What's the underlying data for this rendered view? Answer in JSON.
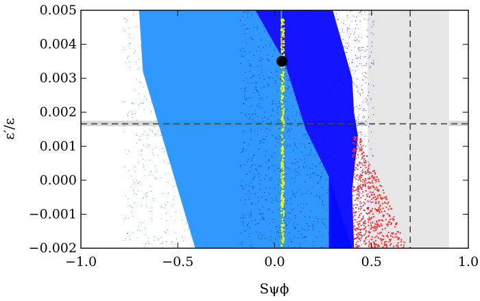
{
  "chart_data": {
    "type": "scatter",
    "xlabel": "Sψϕ",
    "ylabel": "ε′/ε",
    "xlim": [
      -1.0,
      1.0
    ],
    "ylim": [
      -0.002,
      0.005
    ],
    "xticks": [
      "−1.0",
      "−0.5",
      "0.0",
      "0.5",
      "1.0"
    ],
    "xtick_values": [
      -1.0,
      -0.5,
      0.0,
      0.5,
      1.0
    ],
    "yticks": [
      "−0.002",
      "−0.001",
      "0.000",
      "0.001",
      "0.002",
      "0.003",
      "0.004",
      "0.005"
    ],
    "ytick_values": [
      -0.002,
      -0.001,
      0.0,
      0.001,
      0.002,
      0.003,
      0.004,
      0.005
    ],
    "grid": false,
    "bands": [
      {
        "orientation": "horizontal",
        "range": [
          0.00159,
          0.00175
        ],
        "color": "#d9d9d9"
      },
      {
        "orientation": "vertical",
        "range": [
          0.48,
          0.9
        ],
        "color": "#e6e6e6"
      }
    ],
    "reference_lines": [
      {
        "orientation": "horizontal",
        "value": 0.00166,
        "style": "dashed",
        "color": "#444444"
      },
      {
        "orientation": "vertical",
        "value": 0.7,
        "style": "dashed",
        "color": "#444444"
      }
    ],
    "scatter_regions": [
      {
        "color": "#1e90ff",
        "polygon": [
          [
            -0.7,
            0.005
          ],
          [
            -0.1,
            0.005
          ],
          [
            0.05,
            0.0035
          ],
          [
            0.16,
            0.0015
          ],
          [
            0.28,
            0.0001
          ],
          [
            0.4,
            -0.002
          ],
          [
            -0.41,
            -0.002
          ],
          [
            -0.55,
            0.0007
          ],
          [
            -0.68,
            0.0032
          ]
        ]
      },
      {
        "color": "#0000ff",
        "polygon": [
          [
            -0.1,
            0.005
          ],
          [
            0.3,
            0.005
          ],
          [
            0.4,
            0.003
          ],
          [
            0.41,
            0.002
          ],
          [
            0.43,
            0.0013
          ],
          [
            0.4,
            -0.0003
          ],
          [
            0.41,
            -0.002
          ],
          [
            0.28,
            -0.002
          ],
          [
            0.28,
            0.0001
          ],
          [
            0.16,
            0.0015
          ],
          [
            0.05,
            0.0035
          ]
        ]
      },
      {
        "color": "#ff2a2a",
        "polygon": [
          [
            0.4,
            0.0014
          ],
          [
            0.44,
            0.0013
          ],
          [
            0.52,
            0.0002
          ],
          [
            0.6,
            -0.0008
          ],
          [
            0.67,
            -0.0018
          ],
          [
            0.67,
            -0.002
          ],
          [
            0.4,
            -0.002
          ]
        ]
      }
    ],
    "line_series": [
      {
        "color": "#4caf50",
        "points": [
          [
            0.035,
            -0.002
          ],
          [
            0.035,
            0.005
          ]
        ]
      }
    ],
    "highlight_points": {
      "color": "#ffff00",
      "x_range": [
        0.03,
        0.045
      ],
      "y_range": [
        -0.002,
        0.0048
      ]
    },
    "markers": [
      {
        "x": 0.038,
        "y": 0.0035,
        "color": "#000000"
      }
    ]
  }
}
